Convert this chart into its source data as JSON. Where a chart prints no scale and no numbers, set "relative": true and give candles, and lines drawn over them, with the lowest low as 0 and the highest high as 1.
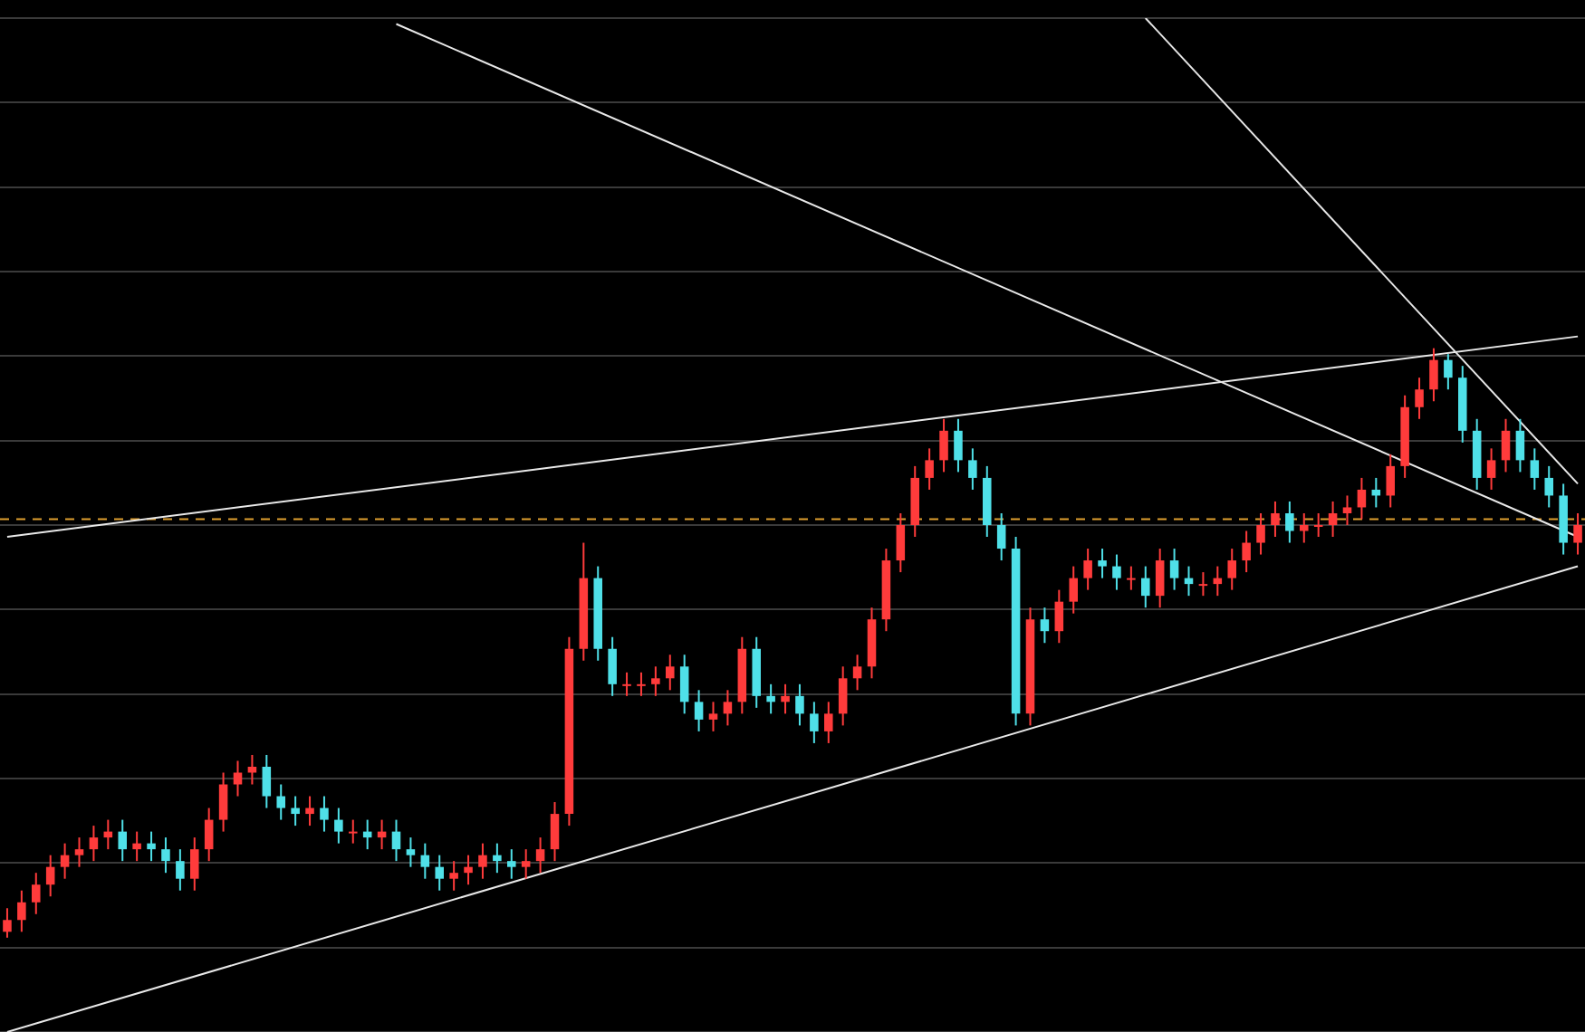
{
  "chart_data": {
    "type": "candlestick",
    "relative": true,
    "legend": false,
    "grid": "y",
    "categories": [
      null,
      null,
      null,
      null,
      null,
      null,
      null,
      null,
      null,
      null,
      null,
      null,
      null,
      null,
      null,
      null,
      null,
      null,
      null,
      null,
      null,
      null,
      null,
      null,
      null,
      null,
      null,
      null,
      null,
      null,
      null,
      null,
      null,
      null,
      null,
      null,
      null,
      null,
      null,
      null,
      null,
      null,
      null,
      null,
      null,
      null,
      null,
      null,
      null,
      null,
      null,
      null,
      null,
      null,
      null,
      null,
      null,
      null,
      null,
      null,
      null,
      null,
      null,
      null,
      null,
      null,
      null,
      null,
      null,
      null,
      null,
      null,
      null,
      null,
      null,
      null,
      null,
      null,
      null,
      null,
      null,
      null,
      null,
      null,
      null,
      null,
      null,
      null,
      null,
      null,
      null,
      null,
      null,
      null,
      null,
      null,
      null,
      null,
      null,
      null,
      null,
      null,
      null,
      null,
      null,
      null,
      null,
      null,
      null,
      null
    ],
    "ohlc": [
      [
        0.01,
        0.05,
        0,
        0.03
      ],
      [
        0.03,
        0.08,
        0.01,
        0.06
      ],
      [
        0.06,
        0.11,
        0.04,
        0.09
      ],
      [
        0.09,
        0.14,
        0.07,
        0.12
      ],
      [
        0.12,
        0.16,
        0.1,
        0.14
      ],
      [
        0.14,
        0.17,
        0.12,
        0.15
      ],
      [
        0.15,
        0.19,
        0.13,
        0.17
      ],
      [
        0.17,
        0.2,
        0.15,
        0.18
      ],
      [
        0.18,
        0.2,
        0.13,
        0.15
      ],
      [
        0.15,
        0.18,
        0.13,
        0.16
      ],
      [
        0.16,
        0.18,
        0.13,
        0.15
      ],
      [
        0.15,
        0.17,
        0.11,
        0.13
      ],
      [
        0.13,
        0.15,
        0.08,
        0.1
      ],
      [
        0.1,
        0.17,
        0.08,
        0.15
      ],
      [
        0.15,
        0.22,
        0.13,
        0.2
      ],
      [
        0.2,
        0.28,
        0.18,
        0.26
      ],
      [
        0.26,
        0.3,
        0.24,
        0.28
      ],
      [
        0.28,
        0.31,
        0.26,
        0.29
      ],
      [
        0.29,
        0.31,
        0.22,
        0.24
      ],
      [
        0.24,
        0.26,
        0.2,
        0.22
      ],
      [
        0.22,
        0.24,
        0.19,
        0.21
      ],
      [
        0.21,
        0.24,
        0.19,
        0.22
      ],
      [
        0.22,
        0.24,
        0.18,
        0.2
      ],
      [
        0.2,
        0.22,
        0.16,
        0.18
      ],
      [
        0.18,
        0.2,
        0.16,
        0.18
      ],
      [
        0.18,
        0.2,
        0.15,
        0.17
      ],
      [
        0.17,
        0.2,
        0.15,
        0.18
      ],
      [
        0.18,
        0.2,
        0.13,
        0.15
      ],
      [
        0.15,
        0.17,
        0.12,
        0.14
      ],
      [
        0.14,
        0.16,
        0.1,
        0.12
      ],
      [
        0.12,
        0.14,
        0.08,
        0.1
      ],
      [
        0.1,
        0.13,
        0.08,
        0.11
      ],
      [
        0.11,
        0.14,
        0.09,
        0.12
      ],
      [
        0.12,
        0.16,
        0.1,
        0.14
      ],
      [
        0.14,
        0.16,
        0.11,
        0.13
      ],
      [
        0.13,
        0.15,
        0.1,
        0.12
      ],
      [
        0.12,
        0.15,
        0.1,
        0.13
      ],
      [
        0.13,
        0.17,
        0.11,
        0.15
      ],
      [
        0.15,
        0.23,
        0.13,
        0.21
      ],
      [
        0.21,
        0.51,
        0.19,
        0.49
      ],
      [
        0.49,
        0.67,
        0.47,
        0.61
      ],
      [
        0.61,
        0.63,
        0.47,
        0.49
      ],
      [
        0.49,
        0.51,
        0.41,
        0.43
      ],
      [
        0.43,
        0.45,
        0.41,
        0.43
      ],
      [
        0.43,
        0.45,
        0.41,
        0.43
      ],
      [
        0.43,
        0.46,
        0.41,
        0.44
      ],
      [
        0.44,
        0.48,
        0.42,
        0.46
      ],
      [
        0.46,
        0.48,
        0.38,
        0.4
      ],
      [
        0.4,
        0.42,
        0.35,
        0.37
      ],
      [
        0.37,
        0.4,
        0.35,
        0.38
      ],
      [
        0.38,
        0.42,
        0.36,
        0.4
      ],
      [
        0.4,
        0.51,
        0.38,
        0.49
      ],
      [
        0.49,
        0.51,
        0.39,
        0.41
      ],
      [
        0.41,
        0.43,
        0.38,
        0.4
      ],
      [
        0.4,
        0.43,
        0.38,
        0.41
      ],
      [
        0.41,
        0.43,
        0.36,
        0.38
      ],
      [
        0.38,
        0.4,
        0.33,
        0.35
      ],
      [
        0.35,
        0.4,
        0.33,
        0.38
      ],
      [
        0.38,
        0.46,
        0.36,
        0.44
      ],
      [
        0.44,
        0.48,
        0.42,
        0.46
      ],
      [
        0.46,
        0.56,
        0.44,
        0.54
      ],
      [
        0.54,
        0.66,
        0.52,
        0.64
      ],
      [
        0.64,
        0.72,
        0.62,
        0.7
      ],
      [
        0.7,
        0.8,
        0.68,
        0.78
      ],
      [
        0.78,
        0.83,
        0.76,
        0.81
      ],
      [
        0.81,
        0.88,
        0.79,
        0.86
      ],
      [
        0.86,
        0.88,
        0.79,
        0.81
      ],
      [
        0.81,
        0.83,
        0.76,
        0.78
      ],
      [
        0.78,
        0.8,
        0.68,
        0.7
      ],
      [
        0.7,
        0.72,
        0.64,
        0.66
      ],
      [
        0.66,
        0.68,
        0.36,
        0.38
      ],
      [
        0.38,
        0.56,
        0.36,
        0.54
      ],
      [
        0.54,
        0.56,
        0.5,
        0.52
      ],
      [
        0.52,
        0.59,
        0.5,
        0.57
      ],
      [
        0.57,
        0.63,
        0.55,
        0.61
      ],
      [
        0.61,
        0.66,
        0.59,
        0.64
      ],
      [
        0.64,
        0.66,
        0.61,
        0.63
      ],
      [
        0.63,
        0.65,
        0.59,
        0.61
      ],
      [
        0.61,
        0.63,
        0.59,
        0.61
      ],
      [
        0.61,
        0.63,
        0.56,
        0.58
      ],
      [
        0.58,
        0.66,
        0.56,
        0.64
      ],
      [
        0.64,
        0.66,
        0.59,
        0.61
      ],
      [
        0.61,
        0.63,
        0.58,
        0.6
      ],
      [
        0.6,
        0.62,
        0.58,
        0.6
      ],
      [
        0.6,
        0.63,
        0.58,
        0.61
      ],
      [
        0.61,
        0.66,
        0.59,
        0.64
      ],
      [
        0.64,
        0.69,
        0.62,
        0.67
      ],
      [
        0.67,
        0.72,
        0.65,
        0.7
      ],
      [
        0.7,
        0.74,
        0.68,
        0.72
      ],
      [
        0.72,
        0.74,
        0.67,
        0.69
      ],
      [
        0.69,
        0.72,
        0.67,
        0.7
      ],
      [
        0.7,
        0.72,
        0.68,
        0.7
      ],
      [
        0.7,
        0.74,
        0.68,
        0.72
      ],
      [
        0.72,
        0.75,
        0.7,
        0.73
      ],
      [
        0.73,
        0.78,
        0.71,
        0.76
      ],
      [
        0.76,
        0.78,
        0.73,
        0.75
      ],
      [
        0.75,
        0.82,
        0.73,
        0.8
      ],
      [
        0.8,
        0.92,
        0.78,
        0.9
      ],
      [
        0.9,
        0.95,
        0.88,
        0.93
      ],
      [
        0.93,
        1,
        0.91,
        0.98
      ],
      [
        0.98,
        0.99,
        0.93,
        0.95
      ],
      [
        0.95,
        0.97,
        0.84,
        0.86
      ],
      [
        0.86,
        0.88,
        0.76,
        0.78
      ],
      [
        0.78,
        0.83,
        0.76,
        0.81
      ],
      [
        0.81,
        0.88,
        0.79,
        0.86
      ],
      [
        0.86,
        0.88,
        0.79,
        0.81
      ],
      [
        0.81,
        0.83,
        0.76,
        0.78
      ],
      [
        0.78,
        0.8,
        0.73,
        0.75
      ],
      [
        0.75,
        0.77,
        0.65,
        0.67
      ],
      [
        0.67,
        0.72,
        0.65,
        0.7
      ]
    ],
    "colors": [
      "#ff3b3b",
      "#ff3b3b",
      "#ff3b3b",
      "#ff3b3b",
      "#ff3b3b",
      "#ff3b3b",
      "#ff3b3b",
      "#ff3b3b",
      "#4fe0e8",
      "#ff3b3b",
      "#4fe0e8",
      "#4fe0e8",
      "#4fe0e8",
      "#ff3b3b",
      "#ff3b3b",
      "#ff3b3b",
      "#ff3b3b",
      "#ff3b3b",
      "#4fe0e8",
      "#4fe0e8",
      "#4fe0e8",
      "#ff3b3b",
      "#4fe0e8",
      "#4fe0e8",
      "#ff3b3b",
      "#4fe0e8",
      "#ff3b3b",
      "#4fe0e8",
      "#4fe0e8",
      "#4fe0e8",
      "#4fe0e8",
      "#ff3b3b",
      "#ff3b3b",
      "#ff3b3b",
      "#4fe0e8",
      "#4fe0e8",
      "#ff3b3b",
      "#ff3b3b",
      "#ff3b3b",
      "#ff3b3b",
      "#ff3b3b",
      "#4fe0e8",
      "#4fe0e8",
      "#ff3b3b",
      "#ff3b3b",
      "#ff3b3b",
      "#ff3b3b",
      "#4fe0e8",
      "#4fe0e8",
      "#ff3b3b",
      "#ff3b3b",
      "#ff3b3b",
      "#4fe0e8",
      "#4fe0e8",
      "#ff3b3b",
      "#4fe0e8",
      "#4fe0e8",
      "#ff3b3b",
      "#ff3b3b",
      "#ff3b3b",
      "#ff3b3b",
      "#ff3b3b",
      "#ff3b3b",
      "#ff3b3b",
      "#ff3b3b",
      "#ff3b3b",
      "#4fe0e8",
      "#4fe0e8",
      "#4fe0e8",
      "#4fe0e8",
      "#4fe0e8",
      "#ff3b3b",
      "#4fe0e8",
      "#ff3b3b",
      "#ff3b3b",
      "#ff3b3b",
      "#4fe0e8",
      "#4fe0e8",
      "#ff3b3b",
      "#4fe0e8",
      "#ff3b3b",
      "#4fe0e8",
      "#4fe0e8",
      "#ff3b3b",
      "#ff3b3b",
      "#ff3b3b",
      "#ff3b3b",
      "#ff3b3b",
      "#ff3b3b",
      "#4fe0e8",
      "#ff3b3b",
      "#ff3b3b",
      "#ff3b3b",
      "#ff3b3b",
      "#ff3b3b",
      "#4fe0e8",
      "#ff3b3b",
      "#ff3b3b",
      "#ff3b3b",
      "#ff3b3b",
      "#4fe0e8",
      "#4fe0e8",
      "#4fe0e8",
      "#ff3b3b",
      "#ff3b3b",
      "#4fe0e8",
      "#4fe0e8",
      "#4fe0e8",
      "#4fe0e8",
      "#ff3b3b"
    ],
    "series": [
      {
        "type": "line",
        "color": "#e8e8e8",
        "values": [
          0.68,
          null,
          null,
          null,
          null,
          null,
          null,
          null,
          null,
          null,
          null,
          null,
          null,
          null,
          null,
          null,
          null,
          null,
          null,
          null,
          null,
          null,
          null,
          null,
          null,
          null,
          null,
          null,
          null,
          null,
          null,
          null,
          null,
          null,
          null,
          null,
          null,
          null,
          null,
          null,
          null,
          null,
          null,
          null,
          null,
          null,
          null,
          null,
          null,
          null,
          null,
          null,
          null,
          null,
          null,
          null,
          null,
          null,
          null,
          null,
          null,
          null,
          null,
          null,
          null,
          null,
          null,
          null,
          null,
          null,
          null,
          null,
          null,
          null,
          null,
          null,
          null,
          null,
          null,
          null,
          null,
          null,
          null,
          null,
          null,
          null,
          null,
          null,
          null,
          null,
          null,
          null,
          null,
          null,
          null,
          null,
          null,
          null,
          null,
          null,
          null,
          null,
          null,
          null,
          null,
          null,
          null,
          null,
          null,
          1.02
        ]
      },
      {
        "type": "line",
        "color": "#e8e8e8",
        "values": [
          -0.16,
          null,
          null,
          null,
          null,
          null,
          null,
          null,
          null,
          null,
          null,
          null,
          null,
          null,
          null,
          null,
          null,
          null,
          null,
          null,
          null,
          null,
          null,
          null,
          null,
          null,
          null,
          null,
          null,
          null,
          null,
          null,
          null,
          null,
          null,
          null,
          null,
          null,
          null,
          null,
          null,
          null,
          null,
          null,
          null,
          null,
          null,
          null,
          null,
          null,
          null,
          null,
          null,
          null,
          null,
          null,
          null,
          null,
          null,
          null,
          null,
          null,
          null,
          null,
          null,
          null,
          null,
          null,
          null,
          null,
          null,
          null,
          null,
          null,
          null,
          null,
          null,
          null,
          null,
          null,
          null,
          null,
          null,
          null,
          null,
          null,
          null,
          null,
          null,
          null,
          null,
          null,
          null,
          null,
          null,
          null,
          null,
          null,
          null,
          null,
          null,
          null,
          null,
          null,
          null,
          null,
          null,
          null,
          null,
          0.63
        ]
      },
      {
        "type": "line",
        "color": "#e8e8e8",
        "values": [
          null,
          null,
          null,
          null,
          null,
          null,
          null,
          null,
          null,
          null,
          null,
          null,
          null,
          null,
          null,
          null,
          null,
          null,
          null,
          null,
          null,
          null,
          null,
          null,
          null,
          null,
          null,
          1.55,
          null,
          null,
          null,
          null,
          null,
          null,
          null,
          null,
          null,
          null,
          null,
          null,
          null,
          null,
          null,
          null,
          null,
          null,
          null,
          null,
          null,
          null,
          null,
          null,
          null,
          null,
          null,
          null,
          null,
          null,
          null,
          null,
          null,
          null,
          null,
          null,
          null,
          null,
          null,
          null,
          null,
          null,
          null,
          null,
          null,
          null,
          null,
          null,
          null,
          null,
          null,
          null,
          null,
          null,
          null,
          null,
          null,
          null,
          null,
          null,
          null,
          null,
          null,
          null,
          null,
          null,
          null,
          null,
          null,
          null,
          null,
          null,
          null,
          null,
          null,
          null,
          null,
          null,
          null,
          null,
          null,
          0.68
        ]
      },
      {
        "type": "line",
        "color": "#e8e8e8",
        "values": [
          null,
          null,
          null,
          null,
          null,
          null,
          null,
          null,
          null,
          null,
          null,
          null,
          null,
          null,
          null,
          null,
          null,
          null,
          null,
          null,
          null,
          null,
          null,
          null,
          null,
          null,
          null,
          null,
          null,
          null,
          null,
          null,
          null,
          null,
          null,
          null,
          null,
          null,
          null,
          null,
          null,
          null,
          null,
          null,
          null,
          null,
          null,
          null,
          null,
          null,
          null,
          null,
          null,
          null,
          null,
          null,
          null,
          null,
          null,
          null,
          null,
          null,
          null,
          null,
          null,
          null,
          null,
          null,
          null,
          null,
          null,
          null,
          null,
          null,
          null,
          null,
          null,
          null,
          null,
          1.56,
          null,
          null,
          null,
          null,
          null,
          null,
          null,
          null,
          null,
          null,
          null,
          null,
          null,
          null,
          null,
          null,
          null,
          null,
          null,
          null,
          null,
          null,
          null,
          null,
          null,
          null,
          null,
          null,
          null,
          0.77
        ]
      }
    ],
    "ref_lines": [
      {
        "axis": "y",
        "value": 0.71,
        "color": "#e0a030",
        "line_style": "dashed"
      }
    ]
  }
}
